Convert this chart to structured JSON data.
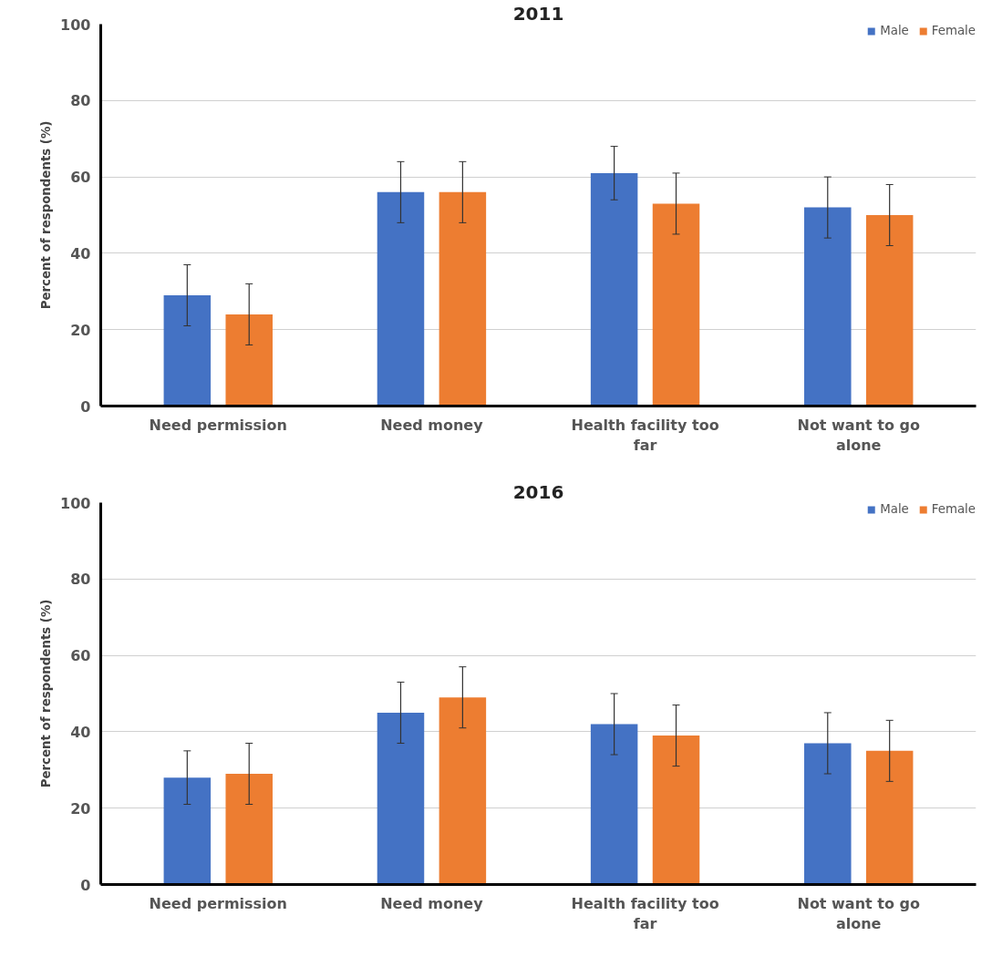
{
  "chart_data": [
    {
      "type": "bar",
      "title": "2011",
      "ylabel": "Percent of respondents (%)",
      "categories": [
        "Need permission",
        "Need money",
        "Health facility too far",
        "Not want to go alone"
      ],
      "series": [
        {
          "name": "Male",
          "color": "#4472c4",
          "values": [
            29,
            56,
            61,
            52
          ],
          "errors": [
            8,
            8,
            7,
            8
          ]
        },
        {
          "name": "Female",
          "color": "#ed7d31",
          "values": [
            24,
            56,
            53,
            50
          ],
          "errors": [
            8,
            8,
            8,
            8
          ]
        }
      ],
      "ylim": [
        0,
        100
      ],
      "yticks": [
        0,
        20,
        40,
        60,
        80,
        100
      ],
      "grid": "y",
      "legend": "top right"
    },
    {
      "type": "bar",
      "title": "2016",
      "ylabel": "Percent of respondents (%)",
      "categories": [
        "Need permission",
        "Need money",
        "Health facility too far",
        "Not want to go alone"
      ],
      "series": [
        {
          "name": "Male",
          "color": "#4472c4",
          "values": [
            28,
            45,
            42,
            37
          ],
          "errors": [
            7,
            8,
            8,
            8
          ]
        },
        {
          "name": "Female",
          "color": "#ed7d31",
          "values": [
            29,
            49,
            39,
            35
          ],
          "errors": [
            8,
            8,
            8,
            8
          ]
        }
      ],
      "ylim": [
        0,
        100
      ],
      "yticks": [
        0,
        20,
        40,
        60,
        80,
        100
      ],
      "grid": "y",
      "legend": "top right"
    }
  ]
}
